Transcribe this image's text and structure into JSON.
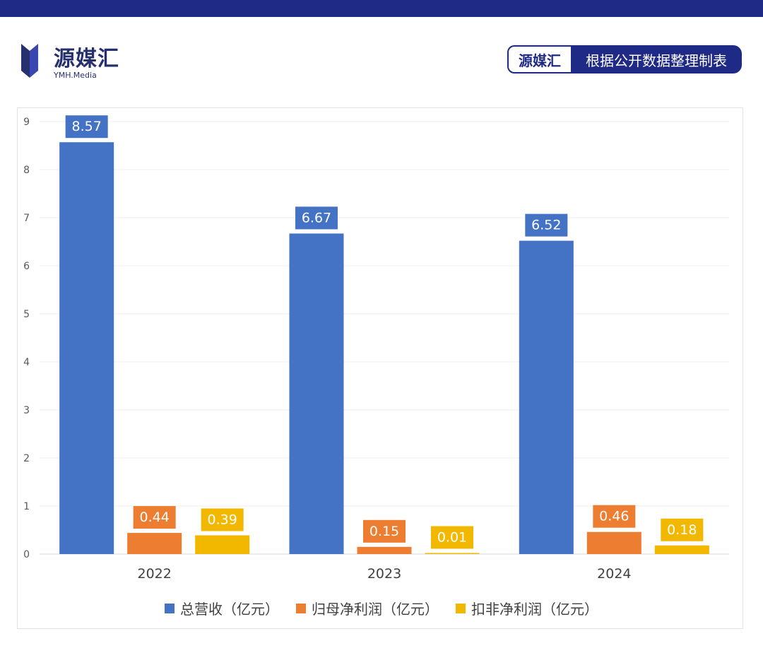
{
  "brand": {
    "name": "源媒汇",
    "sub": "YMH.Media",
    "color": "#27306f"
  },
  "source_tag": {
    "left": "源媒汇",
    "right": "根据公开数据整理制表"
  },
  "chart_data": {
    "type": "bar",
    "categories": [
      "2022",
      "2023",
      "2024"
    ],
    "series": [
      {
        "name": "总营收（亿元）",
        "values": [
          8.57,
          6.67,
          6.52
        ],
        "color": "#4472c4"
      },
      {
        "name": "归母净利润（亿元）",
        "values": [
          0.44,
          0.15,
          0.46
        ],
        "color": "#ed7d31"
      },
      {
        "name": "扣非净利润（亿元）",
        "values": [
          0.39,
          0.01,
          0.18
        ],
        "color": "#f2b800"
      }
    ],
    "yticks": [
      "0",
      "1",
      "2",
      "3",
      "4",
      "5",
      "6",
      "7",
      "8",
      "9"
    ],
    "ylim": [
      0,
      9
    ],
    "grid": true,
    "legend_position": "bottom",
    "data_labels": true
  }
}
